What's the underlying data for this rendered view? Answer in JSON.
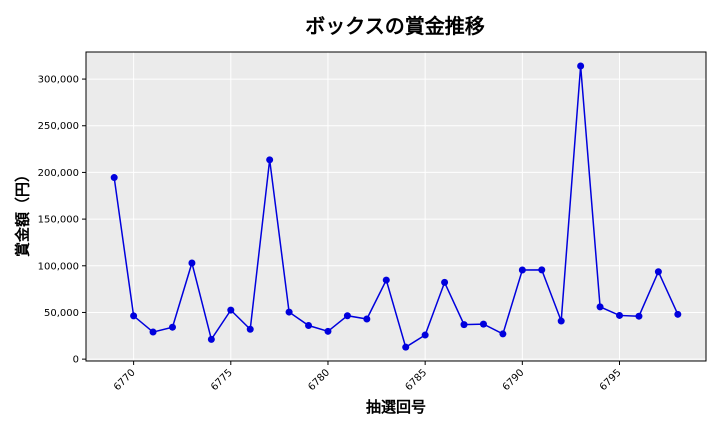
{
  "chart_data": {
    "type": "line",
    "title": "ボックスの賞金推移",
    "xlabel": "抽選回号",
    "ylabel": "賞金額（円）",
    "x": [
      6769,
      6770,
      6771,
      6772,
      6773,
      6774,
      6775,
      6776,
      6777,
      6778,
      6779,
      6780,
      6781,
      6782,
      6783,
      6784,
      6785,
      6786,
      6787,
      6788,
      6789,
      6790,
      6791,
      6792,
      6793,
      6794,
      6795,
      6796,
      6797,
      6798
    ],
    "series": [
      {
        "values": [
          194500,
          46300,
          29000,
          34200,
          103000,
          21200,
          52500,
          32000,
          213500,
          50400,
          36000,
          29800,
          46500,
          43000,
          84700,
          12800,
          25800,
          82200,
          37000,
          37500,
          27000,
          95500,
          95600,
          40800,
          314000,
          56000,
          46800,
          46000,
          93600,
          48000
        ],
        "color": "#0000dd"
      }
    ],
    "xticks": [
      6770,
      6775,
      6780,
      6785,
      6790,
      6795
    ],
    "yticks": [
      0,
      50000,
      100000,
      150000,
      200000,
      250000,
      300000
    ],
    "ytick_labels": [
      "0",
      "50,000",
      "100,000",
      "150,000",
      "200,000",
      "250,000",
      "300,000"
    ],
    "xlim": [
      6767.55,
      6799.45
    ],
    "ylim": [
      -2000,
      329000
    ],
    "grid": true,
    "colors": {
      "background": "#ebebeb",
      "grid": "#ffffff",
      "line": "#0000dd"
    }
  }
}
